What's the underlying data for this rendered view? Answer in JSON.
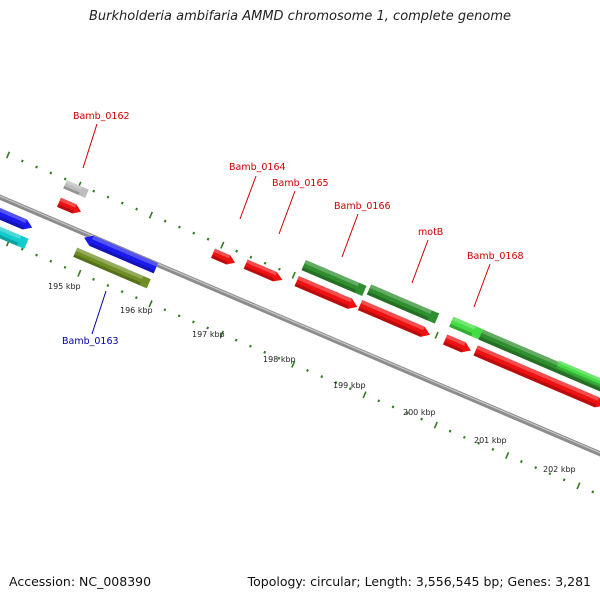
{
  "title": "Burkholderia ambifaria AMMD chromosome 1, complete genome",
  "footer": {
    "accession": "Accession: NC_008390",
    "summary": "Topology: circular; Length: 3,556,545 bp; Genes: 3,281"
  },
  "scale_labels": [
    "195 kbp",
    "196 kbp",
    "197 kbp",
    "198 kbp",
    "199 kbp",
    "200 kbp",
    "201 kbp",
    "202 kbp"
  ],
  "gene_labels": {
    "Bamb_0162": "Bamb_0162",
    "Bamb_0163": "Bamb_0163",
    "Bamb_0164": "Bamb_0164",
    "Bamb_0165": "Bamb_0165",
    "Bamb_0166": "Bamb_0166",
    "motB": "motB",
    "Bamb_0168": "Bamb_0168"
  },
  "colors": {
    "backbone": "#8c8c8c",
    "tick": "#2e7d1e",
    "label_red": "#cc0000",
    "label_blue": "#0000aa",
    "red": "#ee1111",
    "blue": "#1a1aee",
    "cyan": "#11cccc",
    "gray": "#bdbdbd",
    "olive": "#6f8f24",
    "dark_green": "#2f8f2f",
    "light_green": "#44dd44"
  }
}
